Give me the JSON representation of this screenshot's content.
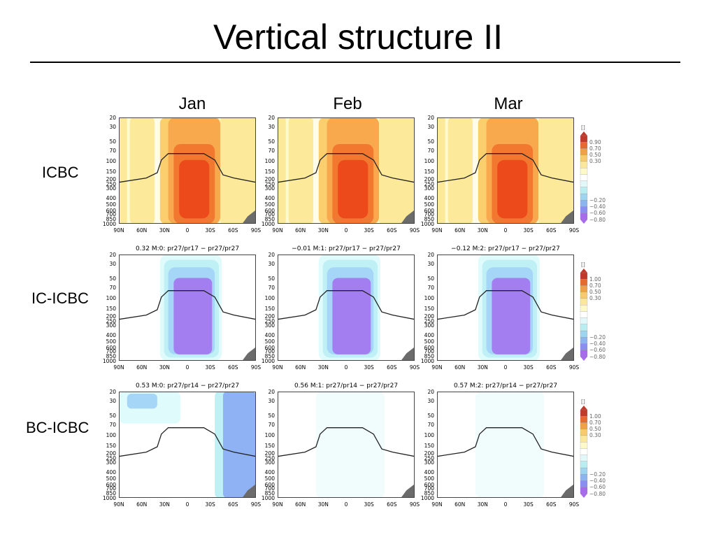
{
  "slide": {
    "title": "Vertical structure II",
    "columns": [
      "Jan",
      "Feb",
      "Mar"
    ],
    "rows": [
      "ICBC",
      "IC-ICBC",
      "BC-ICBC"
    ]
  },
  "panels": {
    "titles": [
      [
        "",
        "",
        ""
      ],
      [
        "0.32 M:0: pr27/pr17 − pr27/pr27",
        "−0.01 M:1: pr27/pr17 − pr27/pr27",
        "−0.12 M:2: pr27/pr17 − pr27/pr27"
      ],
      [
        "0.53 M:0: pr27/pr14 − pr27/pr27",
        "0.56 M:1: pr27/pr14 − pr27/pr27",
        "0.57 M:2: pr27/pr14 − pr27/pr27"
      ]
    ],
    "y_ticks": [
      "20",
      "30",
      "50",
      "70",
      "100",
      "150",
      "200",
      "250",
      "300",
      "400",
      "500",
      "600",
      "700",
      "850",
      "1000"
    ],
    "x_ticks": [
      "90N",
      "60N",
      "30N",
      "0",
      "30S",
      "60S",
      "90S"
    ]
  },
  "legends": [
    {
      "unit": "[]",
      "labels": [
        "0.90",
        "0.70",
        "0.50",
        "0.30",
        "−0.20",
        "−0.40",
        "−0.60",
        "−0.80"
      ]
    },
    {
      "unit": "[]",
      "labels": [
        "1.00",
        "0.70",
        "0.50",
        "0.30",
        "−0.20",
        "−0.40",
        "−0.60",
        "−0.80"
      ]
    },
    {
      "unit": "[]",
      "labels": [
        "1.00",
        "0.70",
        "0.50",
        "0.30",
        "−0.20",
        "−0.40",
        "−0.60",
        "−0.80"
      ]
    }
  ],
  "colors": {
    "warm": [
      "#fffbd0",
      "#fde99a",
      "#fbcf6e",
      "#f8a94e",
      "#f2782f",
      "#ec4a1a"
    ],
    "cool": [
      "#e0fbfb",
      "#bff0f6",
      "#a6d6f7",
      "#8fb2f4",
      "#a37ef0",
      "#b08df5"
    ],
    "legend_bar": [
      "#c0392b",
      "#e46a2f",
      "#f0a04a",
      "#f7cb6d",
      "#fbe79b",
      "#fff8c8",
      "#ffffff",
      "#e2f7fa",
      "#b8eef2",
      "#9dd4f0",
      "#8cb4ee",
      "#8a8ef0",
      "#a66cea"
    ]
  }
}
